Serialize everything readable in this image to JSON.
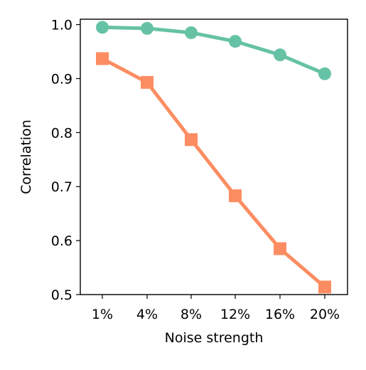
{
  "chart_data": {
    "type": "line",
    "title": "",
    "xlabel": "Noise strength",
    "ylabel": "Correlation",
    "categories": [
      "1%",
      "4%",
      "8%",
      "12%",
      "16%",
      "20%"
    ],
    "ylim": [
      0.5,
      1.01
    ],
    "yticks": [
      "0.5",
      "0.6",
      "0.7",
      "0.8",
      "0.9",
      "1.0"
    ],
    "grid": false,
    "legend": "none",
    "series": [
      {
        "color": "#66c2a5",
        "marker": "circle",
        "values": [
          0.995,
          0.993,
          0.985,
          0.969,
          0.944,
          0.909
        ],
        "error": [
          0.003,
          0.004,
          0.005,
          0.006,
          0.008,
          0.011
        ]
      },
      {
        "color": "#fc8d62",
        "marker": "square",
        "values": [
          0.937,
          0.893,
          0.787,
          0.683,
          0.585,
          0.514
        ],
        "error": [
          0.004,
          0.005,
          0.006,
          0.006,
          0.007,
          0.008
        ]
      }
    ]
  }
}
